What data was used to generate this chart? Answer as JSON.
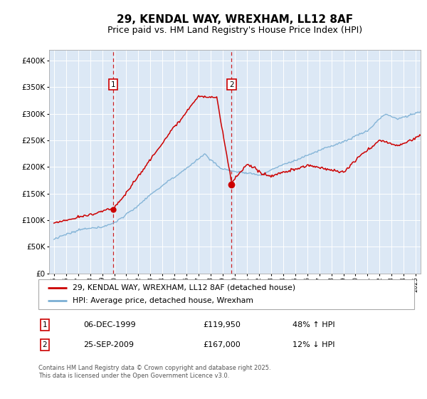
{
  "title": "29, KENDAL WAY, WREXHAM, LL12 8AF",
  "subtitle": "Price paid vs. HM Land Registry's House Price Index (HPI)",
  "legend_line1": "29, KENDAL WAY, WREXHAM, LL12 8AF (detached house)",
  "legend_line2": "HPI: Average price, detached house, Wrexham",
  "sale1_label": "1",
  "sale1_date": "06-DEC-1999",
  "sale1_price": "£119,950",
  "sale1_hpi": "48% ↑ HPI",
  "sale1_year": 1999.92,
  "sale1_value": 119950,
  "sale2_label": "2",
  "sale2_date": "25-SEP-2009",
  "sale2_price": "£167,000",
  "sale2_hpi": "12% ↓ HPI",
  "sale2_year": 2009.73,
  "sale2_value": 167000,
  "copyright": "Contains HM Land Registry data © Crown copyright and database right 2025.\nThis data is licensed under the Open Government Licence v3.0.",
  "hpi_color": "#7bafd4",
  "price_color": "#cc0000",
  "marker_box_color": "#cc0000",
  "bg_color": "#dce8f5",
  "grid_color": "#ffffff",
  "ylim": [
    0,
    420000
  ],
  "xlim_start": 1994.6,
  "xlim_end": 2025.4,
  "title_fontsize": 11,
  "subtitle_fontsize": 9
}
